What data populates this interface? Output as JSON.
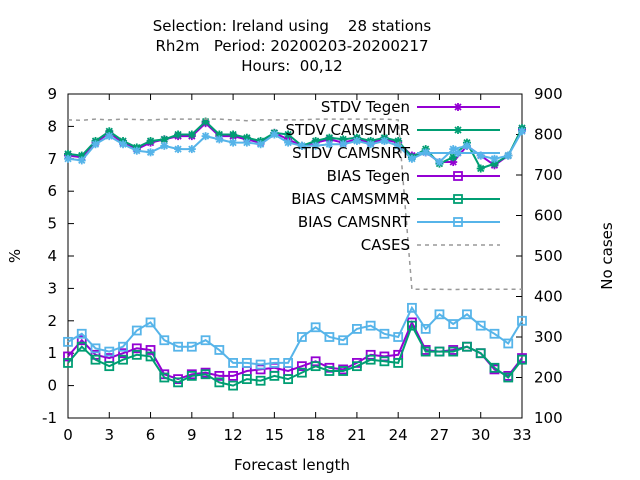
{
  "chart_data": {
    "type": "line",
    "title_lines": [
      "Selection: Ireland using    28 stations",
      "Rh2m   Period: 20200203-20200217",
      "Hours:  00,12"
    ],
    "xlabel": "Forecast length",
    "ylabel": "%",
    "y2label": "No cases",
    "xlim": [
      0,
      33
    ],
    "ylim": [
      -1,
      9
    ],
    "y2lim": [
      100,
      900
    ],
    "x_ticks": [
      0,
      3,
      6,
      9,
      12,
      15,
      18,
      21,
      24,
      27,
      30,
      33
    ],
    "y_ticks": [
      -1,
      0,
      1,
      2,
      3,
      4,
      5,
      6,
      7,
      8,
      9
    ],
    "y2_ticks": [
      100,
      200,
      300,
      400,
      500,
      600,
      700,
      800,
      900
    ],
    "grid": false,
    "legend_position": "top-right",
    "x": [
      0,
      1,
      2,
      3,
      4,
      5,
      6,
      7,
      8,
      9,
      10,
      11,
      12,
      13,
      14,
      15,
      16,
      17,
      18,
      19,
      20,
      21,
      22,
      23,
      24,
      25,
      26,
      27,
      28,
      29,
      30,
      31,
      32,
      33
    ],
    "series": [
      {
        "name": "STDV Tegen",
        "color": "#9400d3",
        "marker": "star",
        "axis": "y",
        "values": [
          7.1,
          7.05,
          7.5,
          7.8,
          7.5,
          7.3,
          7.5,
          7.6,
          7.7,
          7.7,
          8.1,
          7.7,
          7.7,
          7.6,
          7.5,
          7.8,
          7.6,
          7.4,
          7.5,
          7.6,
          7.5,
          7.6,
          7.5,
          7.6,
          7.5,
          7.1,
          7.2,
          6.9,
          6.9,
          7.4,
          7.1,
          6.8,
          7.1,
          7.9
        ]
      },
      {
        "name": "STDV CAMSMMR",
        "color": "#009e73",
        "marker": "star",
        "axis": "y",
        "values": [
          7.15,
          7.1,
          7.55,
          7.85,
          7.55,
          7.35,
          7.55,
          7.6,
          7.75,
          7.75,
          8.15,
          7.75,
          7.75,
          7.65,
          7.55,
          7.8,
          7.75,
          7.4,
          7.55,
          7.65,
          7.6,
          7.65,
          7.55,
          7.65,
          7.55,
          7.05,
          7.3,
          6.85,
          7.05,
          7.5,
          6.7,
          6.85,
          7.1,
          7.95
        ]
      },
      {
        "name": "STDV CAMSNRT",
        "color": "#56b4e9",
        "marker": "star",
        "axis": "y",
        "values": [
          7.0,
          6.95,
          7.45,
          7.7,
          7.45,
          7.25,
          7.2,
          7.4,
          7.3,
          7.3,
          7.7,
          7.6,
          7.5,
          7.5,
          7.45,
          7.75,
          7.5,
          7.4,
          7.4,
          7.45,
          7.45,
          7.55,
          7.45,
          7.55,
          7.4,
          7.0,
          7.2,
          6.9,
          7.3,
          7.4,
          7.1,
          7.0,
          7.1,
          7.85
        ]
      },
      {
        "name": "BIAS Tegen",
        "color": "#9400d3",
        "marker": "square",
        "axis": "y",
        "values": [
          0.9,
          1.4,
          0.95,
          0.85,
          1.0,
          1.15,
          1.1,
          0.35,
          0.2,
          0.35,
          0.4,
          0.3,
          0.3,
          0.45,
          0.5,
          0.55,
          0.45,
          0.6,
          0.75,
          0.55,
          0.5,
          0.7,
          0.95,
          0.9,
          0.95,
          1.95,
          1.1,
          1.05,
          1.1,
          1.2,
          1.0,
          0.5,
          0.3,
          0.85
        ]
      },
      {
        "name": "BIAS CAMSMMR",
        "color": "#009e73",
        "marker": "square",
        "axis": "y",
        "values": [
          0.7,
          1.2,
          0.8,
          0.6,
          0.8,
          0.95,
          0.9,
          0.25,
          0.1,
          0.3,
          0.35,
          0.1,
          0.0,
          0.2,
          0.15,
          0.3,
          0.2,
          0.4,
          0.6,
          0.45,
          0.45,
          0.6,
          0.8,
          0.75,
          0.7,
          1.85,
          1.05,
          1.05,
          1.05,
          1.2,
          1.0,
          0.55,
          0.25,
          0.8
        ]
      },
      {
        "name": "BIAS CAMSNRT",
        "color": "#56b4e9",
        "marker": "square",
        "axis": "y",
        "values": [
          1.35,
          1.6,
          1.15,
          1.05,
          1.2,
          1.7,
          1.95,
          1.4,
          1.2,
          1.2,
          1.4,
          1.1,
          0.7,
          0.7,
          0.65,
          0.7,
          0.7,
          1.5,
          1.8,
          1.5,
          1.4,
          1.75,
          1.85,
          1.6,
          1.5,
          2.4,
          1.75,
          2.2,
          1.9,
          2.2,
          1.85,
          1.6,
          1.3,
          2.0
        ]
      },
      {
        "name": "CASES",
        "color": "#999999",
        "marker": "none",
        "axis": "y2",
        "dashed": true,
        "values": [
          836,
          835,
          838,
          836,
          838,
          837,
          836,
          838,
          838,
          838,
          838,
          838,
          836,
          834,
          836,
          836,
          836,
          836,
          838,
          838,
          838,
          838,
          838,
          838,
          836,
          418,
          418,
          418,
          417,
          418,
          418,
          418,
          418,
          418
        ]
      }
    ]
  }
}
